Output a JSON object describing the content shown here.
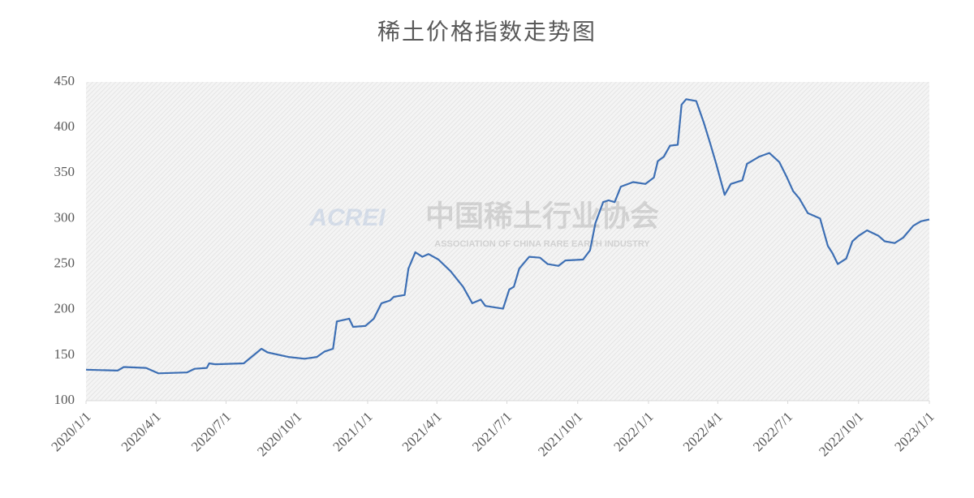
{
  "chart_data": {
    "type": "line",
    "title": "稀土价格指数走势图",
    "watermark": {
      "logo": "ACREI",
      "name": "中国稀土行业协会",
      "subtitle": "ASSOCIATION OF CHINA RARE EARTH INDUSTRY"
    },
    "x": [
      "2020/1/1",
      "2020/2/11",
      "2020/2/19",
      "2020/3/19",
      "2020/4/4",
      "2020/5/11",
      "2020/5/21",
      "2020/6/6",
      "2020/6/9",
      "2020/6/17",
      "2020/7/24",
      "2020/8/3",
      "2020/8/16",
      "2020/8/24",
      "2020/9/20",
      "2020/10/11",
      "2020/10/27",
      "2020/11/6",
      "2020/11/17",
      "2020/11/22",
      "2020/12/8",
      "2020/12/13",
      "2020/12/29",
      "2021/1/9",
      "2021/1/19",
      "2021/1/30",
      "2021/2/4",
      "2021/2/18",
      "2021/2/23",
      "2021/3/4",
      "2021/3/13",
      "2021/3/21",
      "2021/4/3",
      "2021/4/19",
      "2021/5/5",
      "2021/5/17",
      "2021/5/28",
      "2021/6/3",
      "2021/6/26",
      "2021/7/4",
      "2021/7/10",
      "2021/7/17",
      "2021/7/30",
      "2021/8/13",
      "2021/8/23",
      "2021/9/6",
      "2021/9/15",
      "2021/10/8",
      "2021/10/17",
      "2021/10/24",
      "2021/11/3",
      "2021/11/10",
      "2021/11/18",
      "2021/11/26",
      "2021/12/12",
      "2021/12/28",
      "2022/1/8",
      "2022/1/13",
      "2022/1/21",
      "2022/1/29",
      "2022/2/8",
      "2022/2/13",
      "2022/2/19",
      "2022/3/4",
      "2022/3/14",
      "2022/3/22",
      "2022/3/30",
      "2022/4/10",
      "2022/4/18",
      "2022/5/3",
      "2022/5/9",
      "2022/5/25",
      "2022/6/7",
      "2022/6/20",
      "2022/6/30",
      "2022/7/8",
      "2022/7/16",
      "2022/7/27",
      "2022/8/12",
      "2022/8/22",
      "2022/8/28",
      "2022/9/4",
      "2022/9/15",
      "2022/9/23",
      "2022/10/1",
      "2022/10/12",
      "2022/10/27",
      "2022/11/4",
      "2022/11/17",
      "2022/11/28",
      "2022/12/11",
      "2022/12/21",
      "2023/1/1"
    ],
    "series": [
      {
        "color": "#3d6fb4",
        "values": [
          134,
          133,
          137,
          136,
          130,
          131,
          135,
          136,
          141,
          140,
          141,
          148,
          157,
          153,
          148,
          146,
          148,
          154,
          157,
          187,
          190,
          181,
          182,
          190,
          207,
          210,
          214,
          216,
          245,
          263,
          258,
          261,
          255,
          242,
          225,
          207,
          211,
          204,
          201,
          222,
          225,
          245,
          258,
          257,
          250,
          248,
          254,
          255,
          265,
          295,
          318,
          320,
          318,
          335,
          340,
          338,
          345,
          363,
          368,
          380,
          381,
          425,
          431,
          429,
          405,
          383,
          360,
          326,
          338,
          342,
          360,
          368,
          372,
          362,
          345,
          330,
          322,
          306,
          300,
          270,
          262,
          250,
          256,
          275,
          281,
          287,
          281,
          275,
          273,
          279,
          292,
          297,
          299
        ]
      }
    ],
    "xlim": [
      "2020/1/1",
      "2023/1/1"
    ],
    "xticks": [
      "2020/1/1",
      "2020/4/1",
      "2020/7/1",
      "2020/10/1",
      "2021/1/1",
      "2021/4/1",
      "2021/7/1",
      "2021/10/1",
      "2022/1/1",
      "2022/4/1",
      "2022/7/1",
      "2022/10/1",
      "2023/1/1"
    ],
    "ylim": [
      100,
      450
    ],
    "yticks": [
      100,
      150,
      200,
      250,
      300,
      350,
      400,
      450
    ]
  }
}
